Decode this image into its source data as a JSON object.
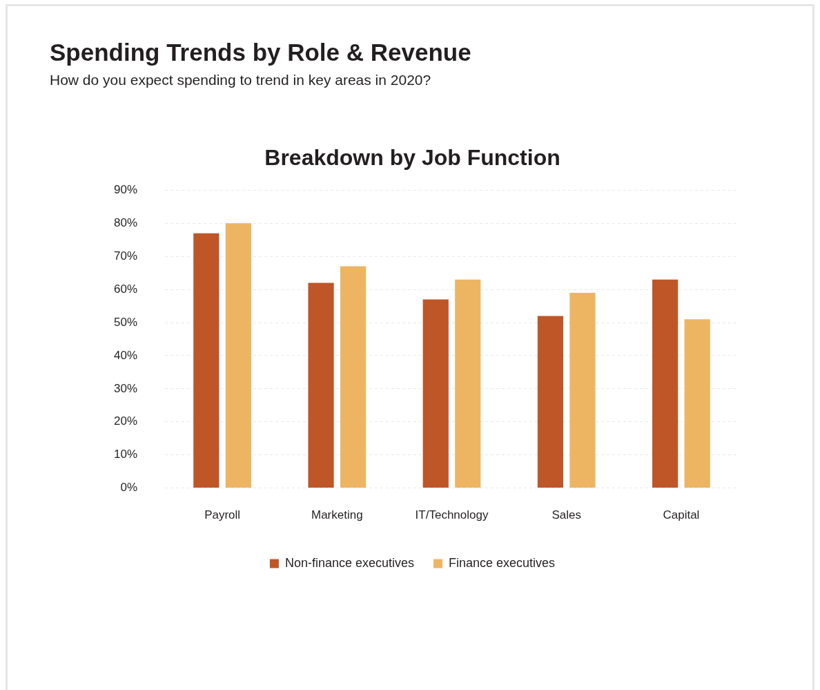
{
  "chart_data": {
    "type": "bar",
    "title": "Spending Trends by Role & Revenue",
    "subtitle": "How do you expect spending to trend in key areas in 2020?",
    "annotations": [
      "Breakdown by Job Function"
    ],
    "categories": [
      "Payroll",
      "Marketing",
      "IT/Technology",
      "Sales",
      "Capital"
    ],
    "series": [
      {
        "name": "Non-finance executives",
        "color": "#bf5628",
        "values": [
          77,
          62,
          57,
          52,
          63
        ]
      },
      {
        "name": "Finance executives",
        "color": "#edb562",
        "values": [
          80,
          67,
          63,
          59,
          51
        ]
      }
    ],
    "ylim": [
      0,
      90
    ],
    "yticks": [
      {
        "value": 0,
        "label": "0%"
      },
      {
        "value": 10,
        "label": "10%"
      },
      {
        "value": 20,
        "label": "20%"
      },
      {
        "value": 30,
        "label": "30%"
      },
      {
        "value": 40,
        "label": "40%"
      },
      {
        "value": 50,
        "label": "50%"
      },
      {
        "value": 60,
        "label": "60%"
      },
      {
        "value": 70,
        "label": "70%"
      },
      {
        "value": 80,
        "label": "80%"
      },
      {
        "value": 90,
        "label": "90%"
      }
    ],
    "grid": "y",
    "legend": "bottom"
  }
}
